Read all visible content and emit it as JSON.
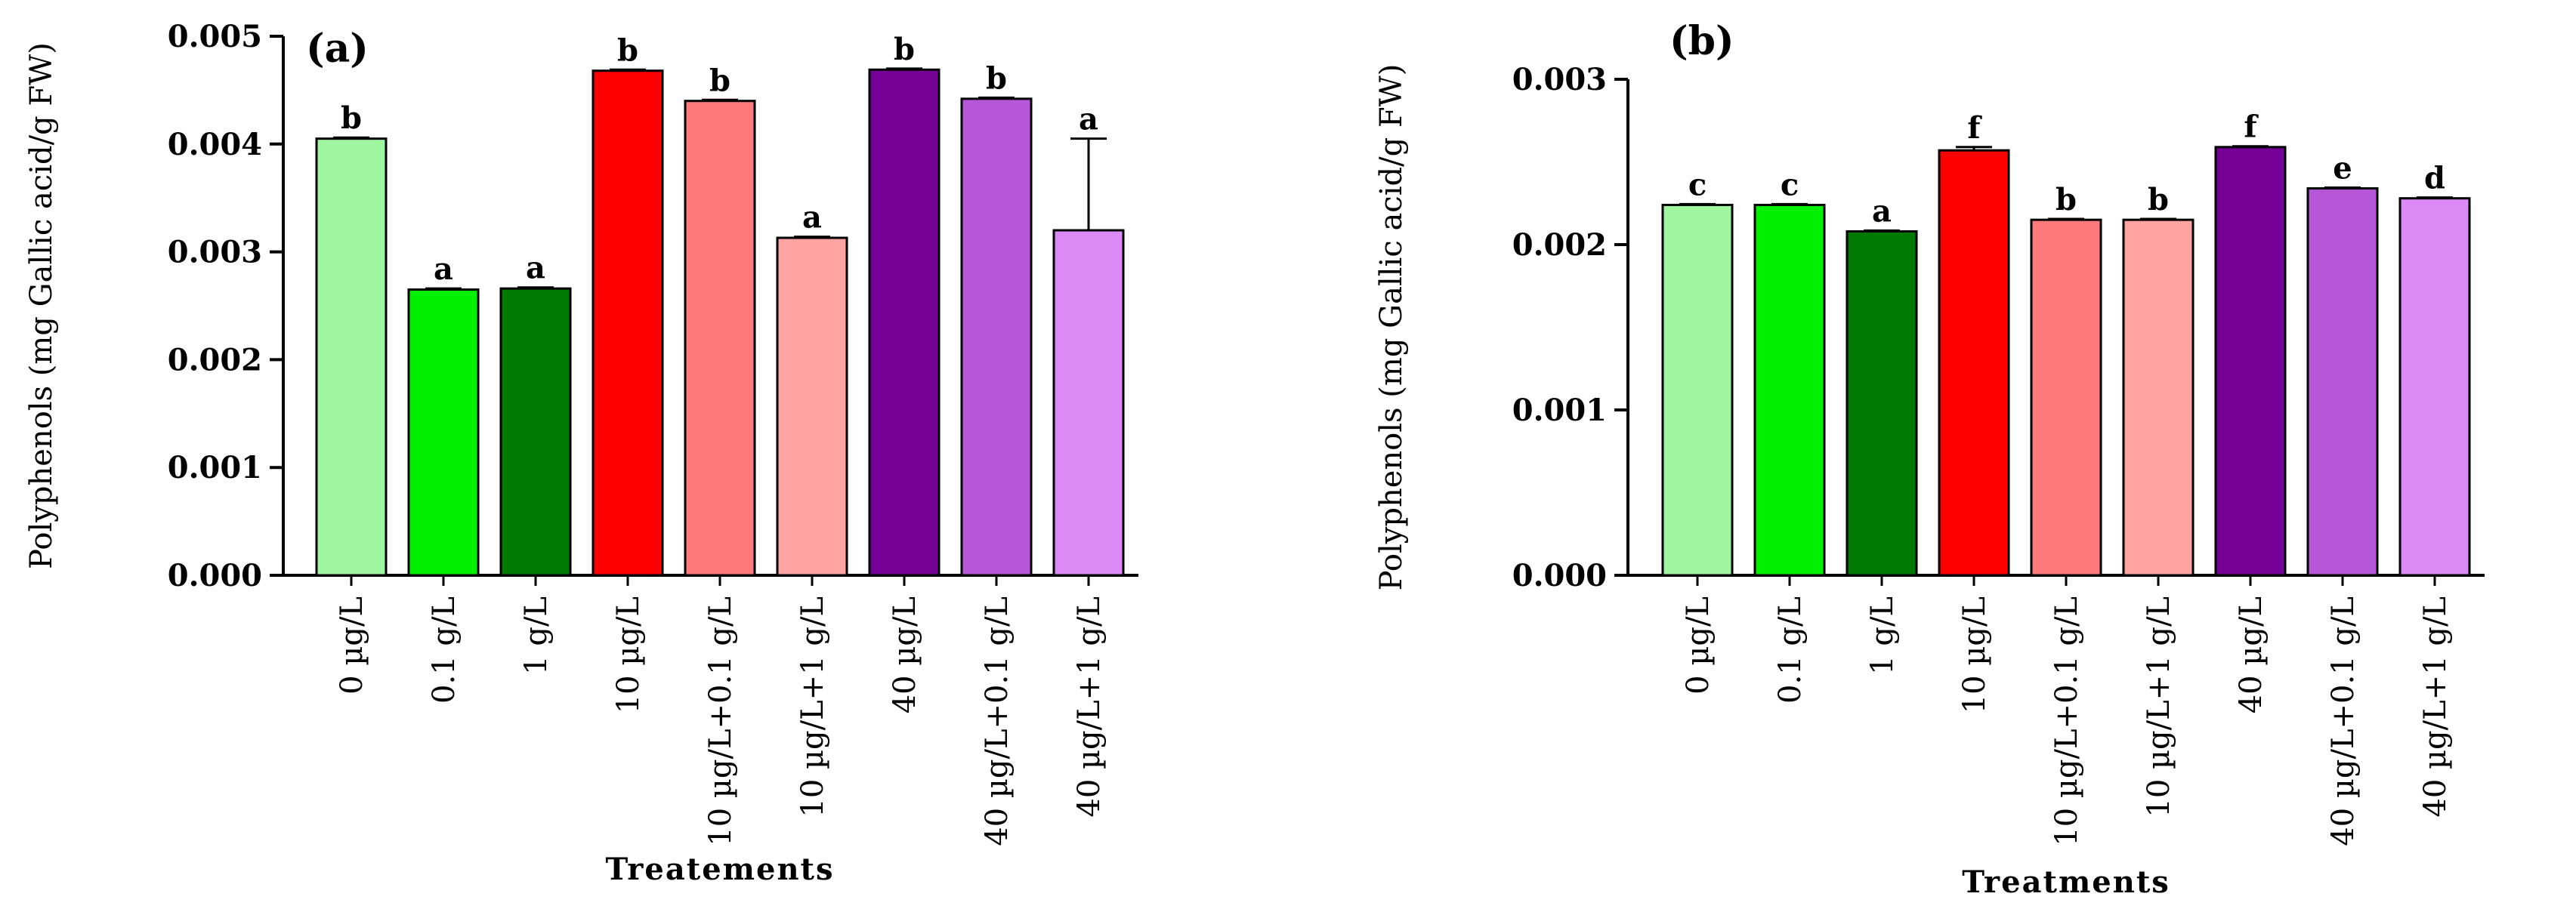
{
  "chart_data": [
    {
      "type": "bar",
      "panel_label": "(a)",
      "title": "",
      "xlabel": "Treatements",
      "ylabel": "Polyphenols (mg Gallic acid/g FW)",
      "ylim": [
        0,
        0.005
      ],
      "yticks": [
        "0.000",
        "0.001",
        "0.002",
        "0.003",
        "0.004",
        "0.005"
      ],
      "categories": [
        "0 µg/L",
        "0.1 g/L",
        "1 g/L",
        "10 µg/L",
        "10 µg/L+0.1 g/L",
        "10 µg/L+1 g/L",
        "40 µg/L",
        "40 µg/L+0.1 g/L",
        "40 µg/L+1 g/L"
      ],
      "values": [
        0.00405,
        0.00265,
        0.00266,
        0.00468,
        0.0044,
        0.00313,
        0.00469,
        0.00442,
        0.0032
      ],
      "errors": [
        1e-05,
        1e-05,
        1e-05,
        1e-05,
        1e-05,
        1e-05,
        1e-05,
        1e-05,
        0.00085
      ],
      "letters": [
        "b",
        "a",
        "a",
        "b",
        "b",
        "a",
        "b",
        "b",
        "a"
      ],
      "colors": [
        "#a0f5a0",
        "#00f000",
        "#007a00",
        "#ff0000",
        "#ff7b7b",
        "#ffa3a3",
        "#740095",
        "#b657d8",
        "#dc8af6"
      ]
    },
    {
      "type": "bar",
      "panel_label": "(b)",
      "title": "",
      "xlabel": "Treatments",
      "ylabel": "Polyphenols (mg Gallic acid/g FW)",
      "ylim": [
        0,
        0.003
      ],
      "yticks": [
        "0.000",
        "0.001",
        "0.002",
        "0.003"
      ],
      "categories": [
        "0 µg/L",
        "0.1 g/L",
        "1 g/L",
        "10 µg/L",
        "10 µg/L+0.1 g/L",
        "10 µg/L+1 g/L",
        "40 µg/L",
        "40 µg/L+0.1 g/L",
        "40 µg/L+1 g/L"
      ],
      "values": [
        0.00224,
        0.00224,
        0.00208,
        0.00257,
        0.00215,
        0.00215,
        0.00259,
        0.00234,
        0.00228
      ],
      "errors": [
        5e-06,
        5e-06,
        5e-06,
        2e-05,
        5e-06,
        5e-06,
        5e-06,
        5e-06,
        5e-06
      ],
      "letters": [
        "c",
        "c",
        "a",
        "f",
        "b",
        "b",
        "f",
        "e",
        "d"
      ],
      "colors": [
        "#a0f5a0",
        "#00f000",
        "#007a00",
        "#ff0000",
        "#ff7b7b",
        "#ffa3a3",
        "#740095",
        "#b657d8",
        "#dc8af6"
      ]
    }
  ]
}
